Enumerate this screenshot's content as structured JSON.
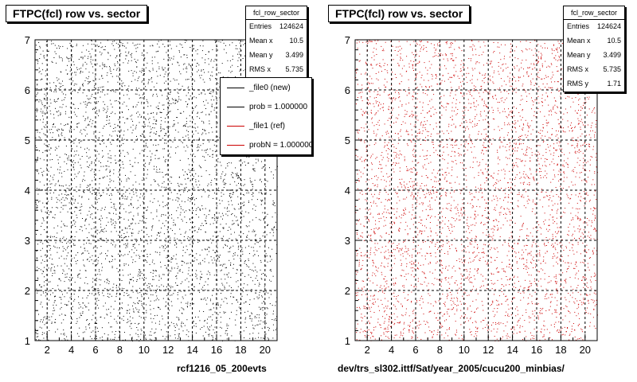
{
  "chart_data": [
    {
      "type": "scatter",
      "title": "FTPC(fcl) row vs. sector",
      "stats": {
        "name": "fcl_row_sector",
        "rows": [
          {
            "label": "Entries",
            "value": "124624"
          },
          {
            "label": "Mean x",
            "value": "10.5"
          },
          {
            "label": "Mean y",
            "value": "3.499"
          },
          {
            "label": "RMS x",
            "value": "5.735"
          }
        ]
      },
      "legend": {
        "entries": [
          {
            "label": "_file0 (new)",
            "color": "#000000"
          },
          {
            "label": "prob = 1.000000",
            "color": "#000000"
          },
          {
            "label": "_file1 (ref)",
            "color": "#cc0000"
          },
          {
            "label": "probN = 1.000000",
            "color": "#cc0000"
          }
        ]
      },
      "xlim": [
        1,
        21
      ],
      "ylim": [
        1,
        7
      ],
      "xticks": [
        2,
        4,
        6,
        8,
        10,
        12,
        14,
        16,
        18,
        20
      ],
      "yticks": [
        1,
        2,
        3,
        4,
        5,
        6,
        7
      ],
      "grid": true,
      "marker_color": "#000000",
      "caption": "rcf1216_05_200evts"
    },
    {
      "type": "scatter",
      "title": "FTPC(fcl) row vs. sector",
      "stats": {
        "name": "fcl_row_sector",
        "rows": [
          {
            "label": "Entries",
            "value": "124624"
          },
          {
            "label": "Mean x",
            "value": "10.5"
          },
          {
            "label": "Mean y",
            "value": "3.499"
          },
          {
            "label": "RMS x",
            "value": "5.735"
          },
          {
            "label": "RMS y",
            "value": "1.71"
          }
        ]
      },
      "xlim": [
        1,
        21
      ],
      "ylim": [
        1,
        7
      ],
      "xticks": [
        2,
        4,
        6,
        8,
        10,
        12,
        14,
        16,
        18,
        20
      ],
      "yticks": [
        1,
        2,
        3,
        4,
        5,
        6,
        7
      ],
      "grid": true,
      "marker_color": "#cc0000",
      "caption": "dev/trs_sl302.ittf/Sat/year_2005/cucu200_minbias/"
    }
  ]
}
